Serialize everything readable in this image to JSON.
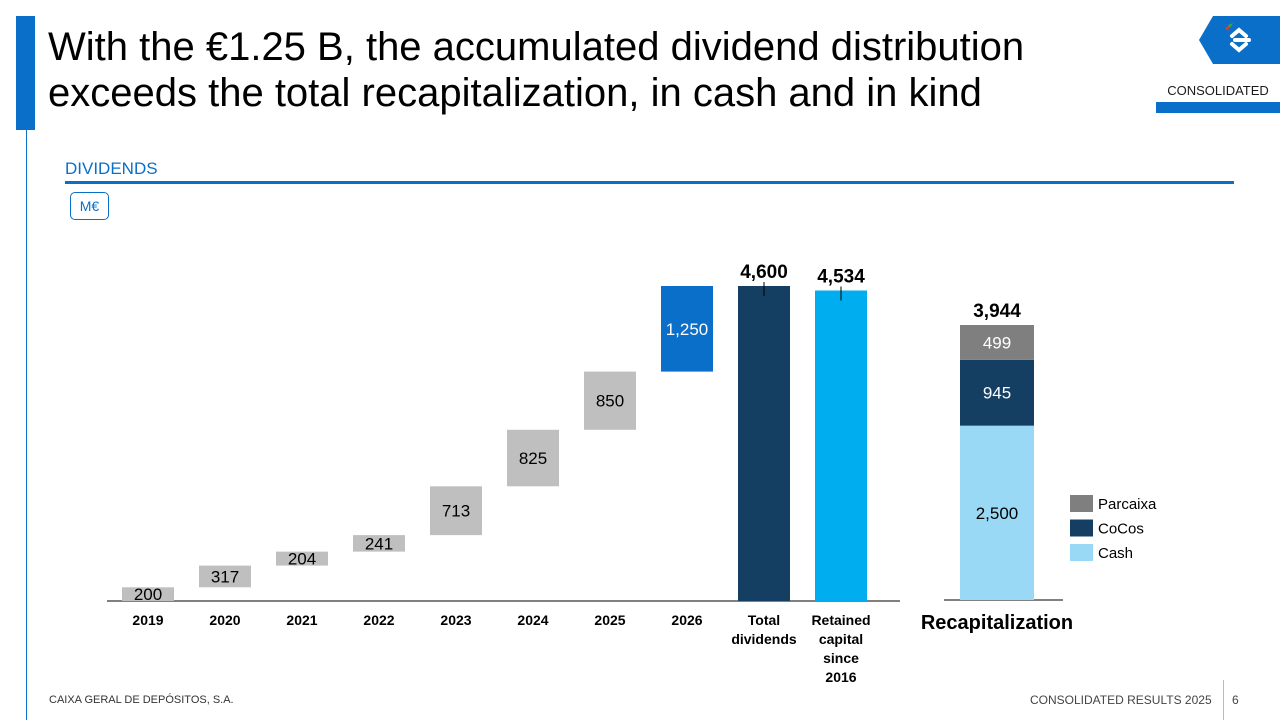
{
  "slide": {
    "title_line1": "With the €1.25 B, the accumulated dividend distribution",
    "title_line2": "exceeds the total recapitalization, in cash and in kind",
    "scope_tag": "CONSOLIDATED",
    "section_title": "DIVIDENDS",
    "unit": "M€",
    "footer_company": "CAIXA GERAL DE DEPÓSITOS, S.A.",
    "footer_report": "CONSOLIDATED RESULTS 2025",
    "page_number": "6"
  },
  "colors": {
    "brand_blue": "#0a6fc9",
    "waterfall_grey": "#bfbfbf",
    "highlight_blue": "#0a6fc9",
    "total_navy": "#143f63",
    "retained_cyan": "#00aeef",
    "parcaixa_grey": "#7f7f7f",
    "cocos_navy": "#143f63",
    "cash_lightblue": "#99d9f5"
  },
  "chart_data": [
    {
      "type": "bar",
      "subtype": "waterfall",
      "title": "DIVIDENDS",
      "unit": "M€",
      "categories": [
        "2019",
        "2020",
        "2021",
        "2022",
        "2023",
        "2024",
        "2025",
        "2026",
        "Total dividends",
        "Retained capital since 2016"
      ],
      "values": [
        200,
        317,
        204,
        241,
        713,
        825,
        850,
        1250,
        4600,
        4534
      ],
      "value_labels": [
        "200",
        "317",
        "204",
        "241",
        "713",
        "825",
        "850",
        "1,250",
        "4,600",
        "4,534"
      ],
      "bar_kinds": [
        "step",
        "step",
        "step",
        "step",
        "step",
        "step",
        "step",
        "highlight",
        "total",
        "total"
      ],
      "ylim": [
        0,
        4600
      ]
    },
    {
      "type": "bar",
      "subtype": "stacked",
      "title": "Recapitalization",
      "categories": [
        "Recapitalization"
      ],
      "series": [
        {
          "name": "Cash",
          "values": [
            2500
          ],
          "label": "2,500"
        },
        {
          "name": "CoCos",
          "values": [
            945
          ],
          "label": "945"
        },
        {
          "name": "Parcaixa",
          "values": [
            499
          ],
          "label": "499"
        }
      ],
      "total": 3944,
      "total_label": "3,944",
      "legend": [
        "Parcaixa",
        "CoCos",
        "Cash"
      ],
      "legend_position": "right"
    }
  ]
}
